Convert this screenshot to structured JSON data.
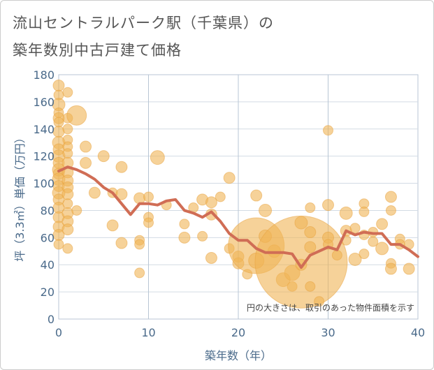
{
  "title_line1": "流山セントラルパーク駅（千葉県）の",
  "title_line2": "築年数別中古戸建て価格",
  "chart_data": {
    "type": "scatter",
    "xlabel": "築年数（年）",
    "ylabel": "坪（3.3㎡）単価（万円）",
    "xlim": [
      0,
      40
    ],
    "ylim": [
      0,
      180
    ],
    "xticks": [
      0,
      10,
      20,
      30,
      40
    ],
    "yticks": [
      0,
      20,
      40,
      60,
      80,
      100,
      120,
      140,
      160,
      180
    ],
    "grid": true,
    "annotation": "円の大きさは、取引のあった物件面積を示す",
    "colors": {
      "bubble": "#f0b455",
      "bubble_edge": "#e7a23d",
      "line": "#d06d55"
    },
    "bubbles": [
      {
        "x": 0,
        "y": 172,
        "s": 8
      },
      {
        "x": 0,
        "y": 165,
        "s": 7
      },
      {
        "x": 0,
        "y": 158,
        "s": 9
      },
      {
        "x": 0,
        "y": 152,
        "s": 7
      },
      {
        "x": 0,
        "y": 148,
        "s": 8
      },
      {
        "x": 0,
        "y": 145,
        "s": 7
      },
      {
        "x": 0,
        "y": 138,
        "s": 8
      },
      {
        "x": 0,
        "y": 130,
        "s": 9
      },
      {
        "x": 0,
        "y": 125,
        "s": 8
      },
      {
        "x": 0,
        "y": 120,
        "s": 9
      },
      {
        "x": 0,
        "y": 115,
        "s": 8
      },
      {
        "x": 0,
        "y": 110,
        "s": 9
      },
      {
        "x": 0,
        "y": 107,
        "s": 8
      },
      {
        "x": 0,
        "y": 103,
        "s": 9
      },
      {
        "x": 0,
        "y": 98,
        "s": 8
      },
      {
        "x": 0,
        "y": 93,
        "s": 9
      },
      {
        "x": 0,
        "y": 88,
        "s": 8
      },
      {
        "x": 0,
        "y": 82,
        "s": 8
      },
      {
        "x": 0,
        "y": 75,
        "s": 8
      },
      {
        "x": 0,
        "y": 68,
        "s": 8
      },
      {
        "x": 0,
        "y": 62,
        "s": 8
      },
      {
        "x": 0,
        "y": 55,
        "s": 7
      },
      {
        "x": 1,
        "y": 167,
        "s": 7
      },
      {
        "x": 1,
        "y": 148,
        "s": 7
      },
      {
        "x": 1,
        "y": 140,
        "s": 7
      },
      {
        "x": 1,
        "y": 132,
        "s": 7
      },
      {
        "x": 1,
        "y": 127,
        "s": 7
      },
      {
        "x": 1,
        "y": 122,
        "s": 7
      },
      {
        "x": 1,
        "y": 115,
        "s": 8
      },
      {
        "x": 1,
        "y": 108,
        "s": 8
      },
      {
        "x": 1,
        "y": 102,
        "s": 8
      },
      {
        "x": 1,
        "y": 97,
        "s": 8
      },
      {
        "x": 1,
        "y": 92,
        "s": 8
      },
      {
        "x": 1,
        "y": 85,
        "s": 7
      },
      {
        "x": 1,
        "y": 78,
        "s": 8
      },
      {
        "x": 1,
        "y": 72,
        "s": 8
      },
      {
        "x": 1,
        "y": 66,
        "s": 8
      },
      {
        "x": 1,
        "y": 52,
        "s": 7
      },
      {
        "x": 2,
        "y": 150,
        "s": 14
      },
      {
        "x": 2,
        "y": 80,
        "s": 7
      },
      {
        "x": 3,
        "y": 127,
        "s": 8
      },
      {
        "x": 3,
        "y": 115,
        "s": 8
      },
      {
        "x": 4,
        "y": 93,
        "s": 8
      },
      {
        "x": 5,
        "y": 120,
        "s": 8
      },
      {
        "x": 6,
        "y": 93,
        "s": 7
      },
      {
        "x": 6,
        "y": 69,
        "s": 8
      },
      {
        "x": 7,
        "y": 112,
        "s": 8
      },
      {
        "x": 7,
        "y": 92,
        "s": 8
      },
      {
        "x": 7,
        "y": 56,
        "s": 8
      },
      {
        "x": 9,
        "y": 89,
        "s": 8
      },
      {
        "x": 9,
        "y": 58,
        "s": 7
      },
      {
        "x": 9,
        "y": 55,
        "s": 7
      },
      {
        "x": 9,
        "y": 34,
        "s": 7
      },
      {
        "x": 10,
        "y": 90,
        "s": 7
      },
      {
        "x": 10,
        "y": 75,
        "s": 7
      },
      {
        "x": 10,
        "y": 71,
        "s": 7
      },
      {
        "x": 11,
        "y": 119,
        "s": 10
      },
      {
        "x": 12,
        "y": 84,
        "s": 7
      },
      {
        "x": 14,
        "y": 70,
        "s": 7
      },
      {
        "x": 14,
        "y": 60,
        "s": 8
      },
      {
        "x": 15,
        "y": 82,
        "s": 7
      },
      {
        "x": 16,
        "y": 88,
        "s": 8
      },
      {
        "x": 16,
        "y": 61,
        "s": 7
      },
      {
        "x": 17,
        "y": 86,
        "s": 8
      },
      {
        "x": 17,
        "y": 77,
        "s": 8
      },
      {
        "x": 17,
        "y": 45,
        "s": 8
      },
      {
        "x": 18,
        "y": 90,
        "s": 7
      },
      {
        "x": 19,
        "y": 104,
        "s": 8
      },
      {
        "x": 19,
        "y": 52,
        "s": 7
      },
      {
        "x": 20,
        "y": 46,
        "s": 8
      },
      {
        "x": 20,
        "y": 41,
        "s": 8
      },
      {
        "x": 21,
        "y": 33,
        "s": 7
      },
      {
        "x": 22,
        "y": 91,
        "s": 8
      },
      {
        "x": 22,
        "y": 54,
        "s": 40
      },
      {
        "x": 22,
        "y": 43,
        "s": 11
      },
      {
        "x": 23,
        "y": 80,
        "s": 9
      },
      {
        "x": 23,
        "y": 61,
        "s": 9
      },
      {
        "x": 24,
        "y": 50,
        "s": 9
      },
      {
        "x": 25,
        "y": 29,
        "s": 10
      },
      {
        "x": 26,
        "y": 34,
        "s": 11
      },
      {
        "x": 26,
        "y": 24,
        "s": 7
      },
      {
        "x": 27,
        "y": 42,
        "s": 66
      },
      {
        "x": 27,
        "y": 71,
        "s": 9
      },
      {
        "x": 27,
        "y": 40,
        "s": 8
      },
      {
        "x": 28,
        "y": 82,
        "s": 7
      },
      {
        "x": 28,
        "y": 64,
        "s": 8
      },
      {
        "x": 28,
        "y": 53,
        "s": 8
      },
      {
        "x": 28,
        "y": 24,
        "s": 7
      },
      {
        "x": 29,
        "y": 13,
        "s": 7
      },
      {
        "x": 30,
        "y": 139,
        "s": 7
      },
      {
        "x": 30,
        "y": 84,
        "s": 8
      },
      {
        "x": 30,
        "y": 60,
        "s": 8
      },
      {
        "x": 30,
        "y": 55,
        "s": 7
      },
      {
        "x": 31,
        "y": 47,
        "s": 7
      },
      {
        "x": 32,
        "y": 78,
        "s": 9
      },
      {
        "x": 32,
        "y": 65,
        "s": 8
      },
      {
        "x": 32,
        "y": 58,
        "s": 7
      },
      {
        "x": 33,
        "y": 67,
        "s": 7
      },
      {
        "x": 33,
        "y": 44,
        "s": 9
      },
      {
        "x": 34,
        "y": 85,
        "s": 7
      },
      {
        "x": 34,
        "y": 79,
        "s": 7
      },
      {
        "x": 34,
        "y": 62,
        "s": 7
      },
      {
        "x": 34,
        "y": 48,
        "s": 7
      },
      {
        "x": 35,
        "y": 64,
        "s": 7
      },
      {
        "x": 35,
        "y": 57,
        "s": 7
      },
      {
        "x": 36,
        "y": 70,
        "s": 8
      },
      {
        "x": 36,
        "y": 52,
        "s": 9
      },
      {
        "x": 37,
        "y": 90,
        "s": 8
      },
      {
        "x": 37,
        "y": 80,
        "s": 7
      },
      {
        "x": 37,
        "y": 41,
        "s": 7
      },
      {
        "x": 37,
        "y": 37,
        "s": 8
      },
      {
        "x": 38,
        "y": 59,
        "s": 7
      },
      {
        "x": 38,
        "y": 55,
        "s": 7
      },
      {
        "x": 39,
        "y": 37,
        "s": 8
      },
      {
        "x": 39,
        "y": 55,
        "s": 7
      }
    ],
    "series": [
      {
        "name": "average",
        "x": [
          0,
          1,
          2,
          3,
          4,
          5,
          6,
          7,
          8,
          9,
          10,
          11,
          12,
          13,
          14,
          15,
          16,
          17,
          18,
          19,
          20,
          21,
          22,
          23,
          24,
          25,
          26,
          27,
          28,
          29,
          30,
          31,
          32,
          33,
          34,
          35,
          36,
          37,
          38,
          39,
          40
        ],
        "values": [
          109,
          112,
          110,
          107,
          103,
          97,
          93,
          85,
          77,
          85,
          85,
          84,
          87,
          88,
          80,
          78,
          75,
          79,
          72,
          63,
          58,
          58,
          52,
          49,
          49,
          49,
          48,
          38,
          47,
          50,
          53,
          51,
          65,
          62,
          64,
          63,
          63,
          55,
          55,
          51,
          46
        ]
      }
    ]
  }
}
